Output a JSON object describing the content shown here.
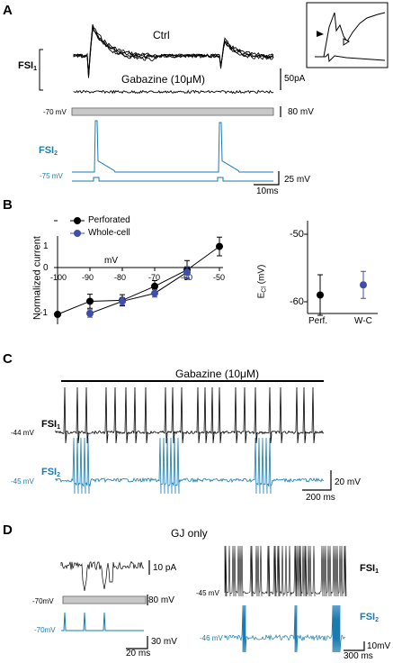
{
  "colors": {
    "blue": "#1a7bb0",
    "navy": "#3f4ea8",
    "black": "#000000"
  },
  "panels": [
    "A",
    "B",
    "C",
    "D"
  ],
  "panelA": {
    "ctrl": "Ctrl",
    "gabazine": "Gabazine (10μM)",
    "fsi1": "FSI",
    "fsi1_sub": "1",
    "scale_current": "50pA",
    "hold_v1": "-70 mV",
    "scale_step": "80 mV",
    "fsi2": "FSI",
    "fsi2_sub": "2",
    "hold_v2": "-75 mV",
    "scale_v": "25 mV",
    "scale_t": "10ms"
  },
  "panelB": {
    "ylabel": "Normalized current",
    "xlabel": "mV",
    "yticks": [
      "1",
      "0",
      "-1"
    ],
    "xticks": [
      "-100",
      "-90",
      "-80",
      "-70",
      "-60",
      "-50"
    ],
    "legend": [
      {
        "name": "Perforated"
      },
      {
        "name": "Whole-cell"
      }
    ],
    "ecl_label": "E",
    "ecl_sub": "Cl",
    "ecl_unit": "(mV)",
    "ecl_ticks": [
      "-50",
      "-60"
    ],
    "ecl_x": [
      "Perf.",
      "W-C"
    ]
  },
  "panelC": {
    "gabazine": "Gabazine (10μM)",
    "fsi1": "FSI",
    "fsi1_sub": "1",
    "v1": "-44 mV",
    "fsi2": "FSI",
    "fsi2_sub": "2",
    "v2": "-45 mV",
    "scale_v": "20 mV",
    "scale_t": "200 ms"
  },
  "panelD": {
    "title": "GJ only",
    "scale_current": "10 pA",
    "hold_v1": "-70mV",
    "scale_step": "80 mV",
    "v_fsi2": "-70mV",
    "scale_v": "30 mV",
    "scale_t": "20 ms",
    "fsi1": "FSI",
    "fsi1_sub": "1",
    "v1_right": "-45 mV",
    "fsi2": "FSI",
    "fsi2_sub": "2",
    "v2_right": "-46 mV",
    "scale_v_right": "10mV",
    "scale_t_right": "300 ms"
  },
  "chart_data": [
    {
      "type": "line",
      "title": "",
      "xlabel": "mV",
      "ylabel": "Normalized current",
      "xlim": [
        -100,
        -50
      ],
      "ylim": [
        -1.1,
        0.7
      ],
      "series": [
        {
          "name": "Perforated",
          "x": [
            -100,
            -90,
            -80,
            -70,
            -60,
            -50
          ],
          "values": [
            -1.0,
            -0.72,
            -0.7,
            -0.4,
            -0.05,
            0.45
          ],
          "err": [
            0,
            0.15,
            0.12,
            0.12,
            0.2,
            0.2
          ]
        },
        {
          "name": "Whole-cell",
          "x": [
            -90,
            -80,
            -70,
            -60
          ],
          "values": [
            -0.98,
            -0.72,
            -0.55,
            -0.1
          ],
          "err": [
            0.08,
            0.08,
            0.08,
            0.12
          ]
        }
      ]
    },
    {
      "type": "scatter",
      "ylabel": "ECl (mV)",
      "categories": [
        "Perf.",
        "W-C"
      ],
      "ylim": [
        -64,
        -48
      ],
      "values": [
        -59,
        -57.5
      ],
      "err": [
        3,
        2
      ]
    }
  ]
}
